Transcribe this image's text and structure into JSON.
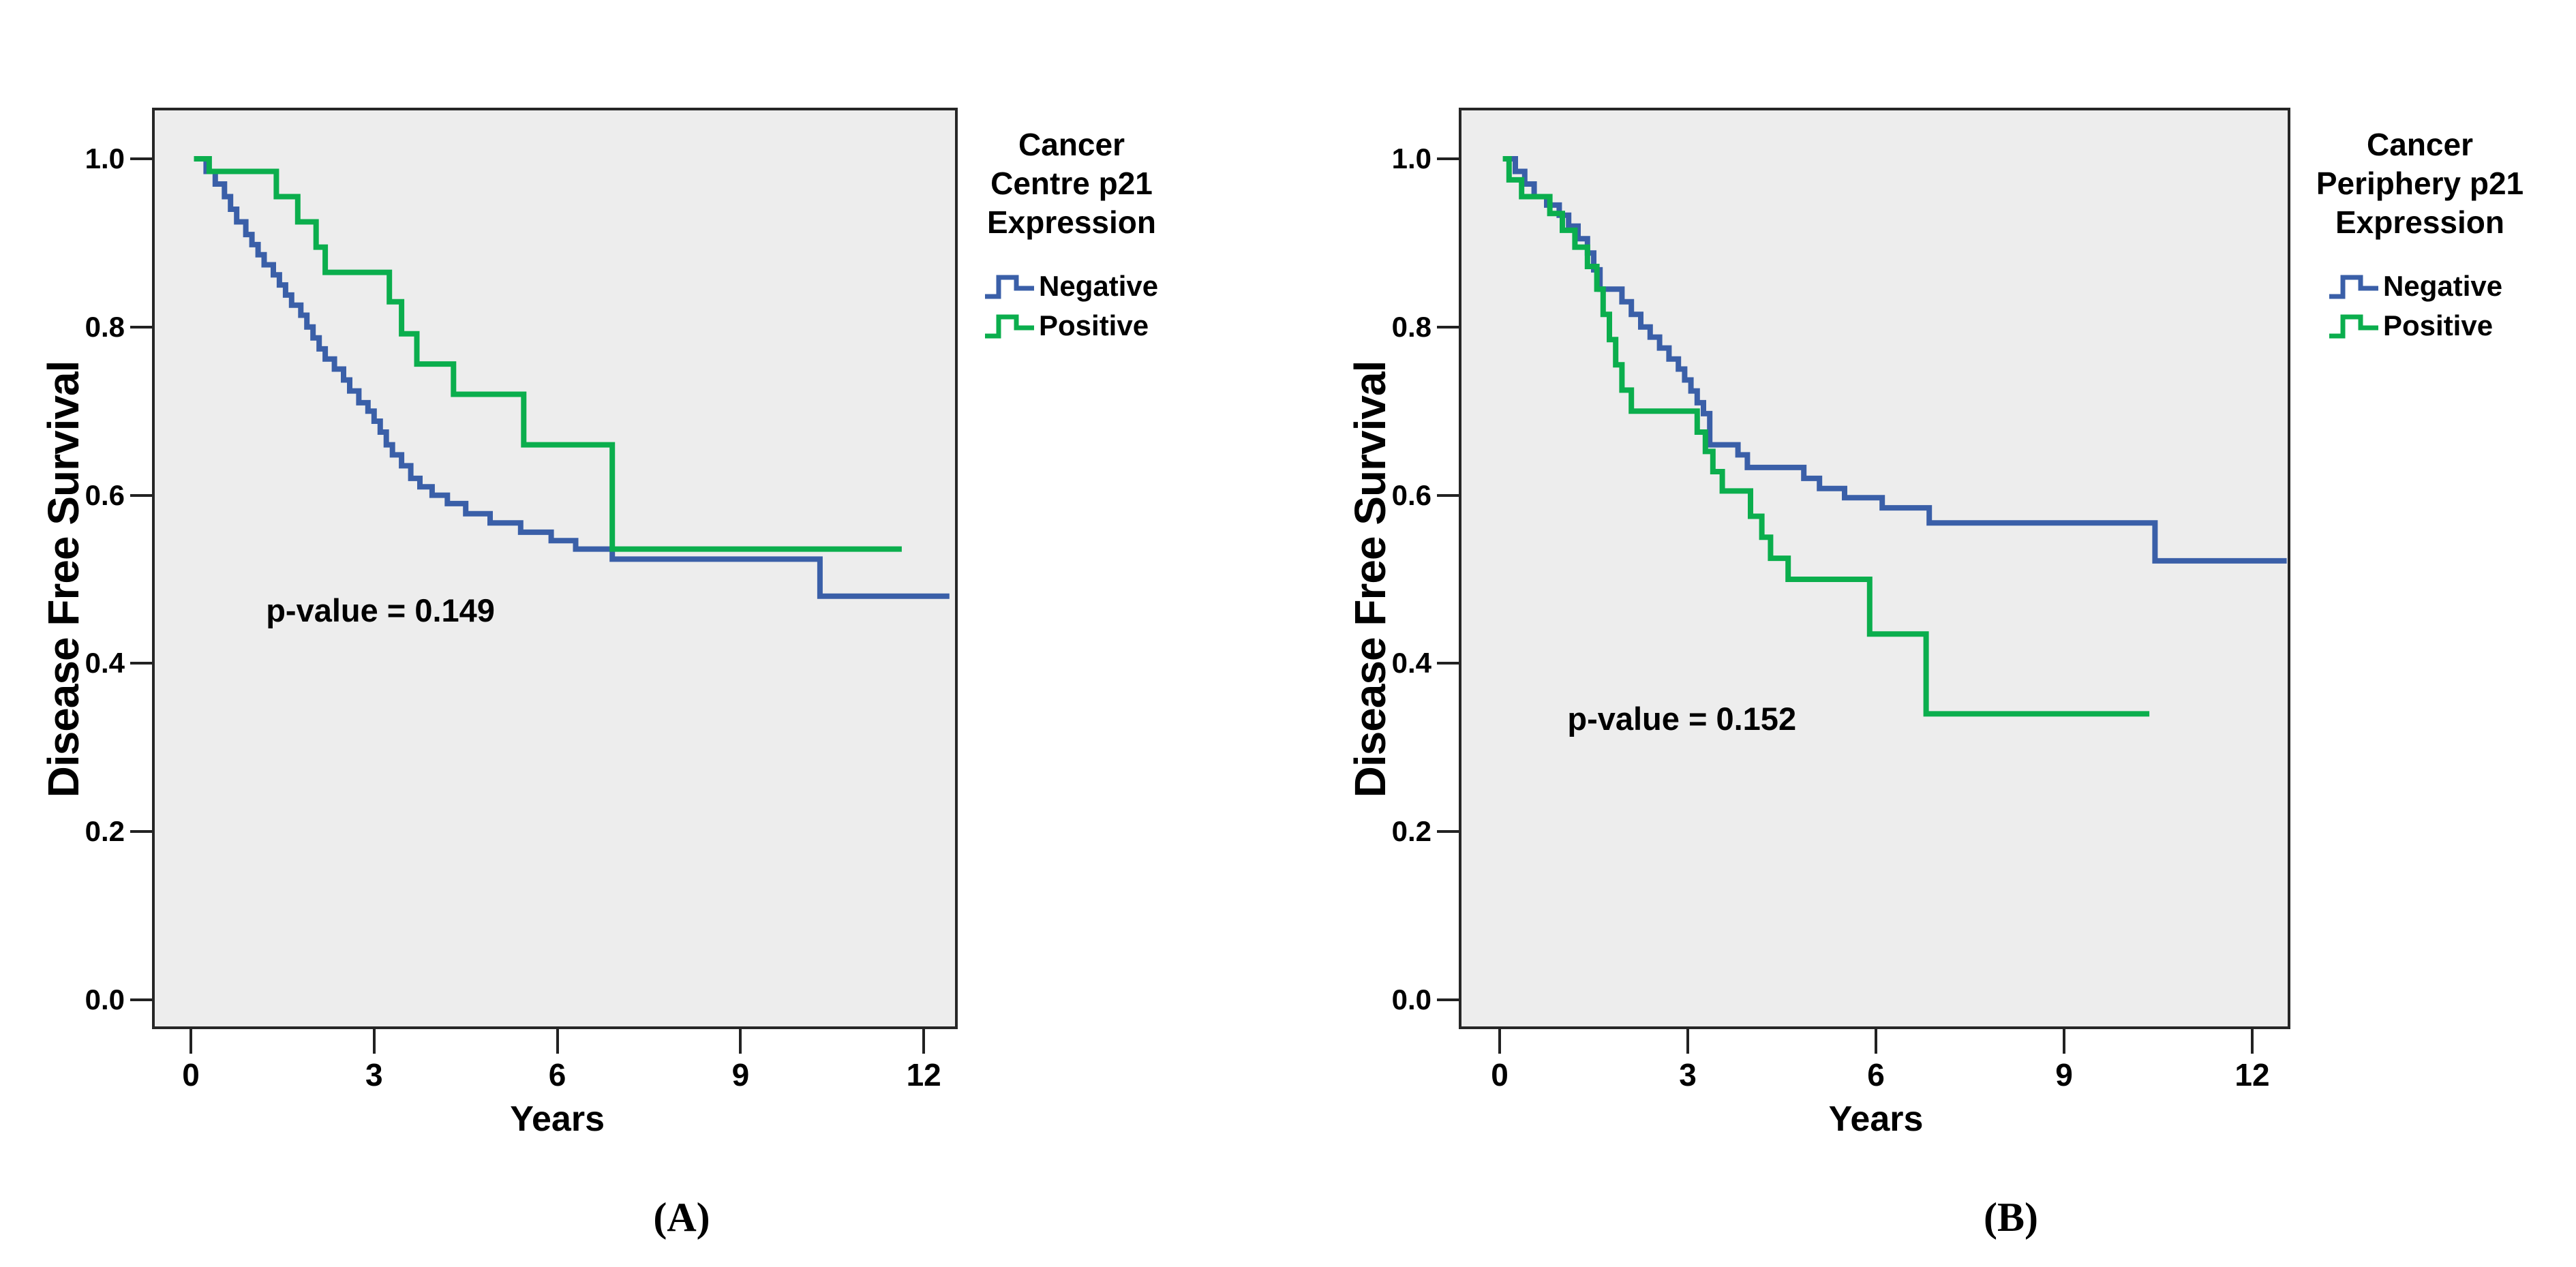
{
  "figure": {
    "type": "kaplan-meier-pair",
    "background": "#ffffff"
  },
  "colors": {
    "negative": "#3a5fa8",
    "positive": "#0bae4d",
    "plot_background": "#ededed",
    "frame": "#262626",
    "tick": "#222222",
    "text": "#000000"
  },
  "chart_data": [
    {
      "type": "line",
      "subtype": "kaplan-meier-step",
      "xlabel": "Years",
      "ylabel": "Disease Free Survival",
      "caption": "(A)",
      "annotation": "p-value = 0.149",
      "annotation_xy": [
        1.23,
        0.463
      ],
      "legend_title_lines": [
        "Cancer",
        "Centre p21",
        "Expression"
      ],
      "legend_position": "right",
      "grid": false,
      "xlim": [
        -0.64,
        12.7
      ],
      "ylim": [
        -0.035,
        1.06
      ],
      "x_ticks": [
        0,
        3,
        6,
        9,
        12
      ],
      "y_ticks": [
        1.0,
        0.8,
        0.6,
        0.4,
        0.2,
        0.0
      ],
      "x_tick_labels": [
        "0",
        "3",
        "6",
        "9",
        "12"
      ],
      "y_tick_labels": [
        "1.0",
        "0.8",
        "0.6",
        "0.4",
        "0.2",
        "0.0"
      ],
      "series": [
        {
          "name": "Negative",
          "color": "#3a5fa8",
          "steps": [
            [
              0.05,
              1.0
            ],
            [
              0.25,
              0.985
            ],
            [
              0.4,
              0.97
            ],
            [
              0.55,
              0.955
            ],
            [
              0.65,
              0.94
            ],
            [
              0.75,
              0.925
            ],
            [
              0.9,
              0.91
            ],
            [
              1.0,
              0.898
            ],
            [
              1.1,
              0.886
            ],
            [
              1.2,
              0.874
            ],
            [
              1.35,
              0.862
            ],
            [
              1.45,
              0.85
            ],
            [
              1.55,
              0.838
            ],
            [
              1.65,
              0.826
            ],
            [
              1.8,
              0.814
            ],
            [
              1.9,
              0.8
            ],
            [
              2.0,
              0.787
            ],
            [
              2.1,
              0.774
            ],
            [
              2.2,
              0.762
            ],
            [
              2.35,
              0.75
            ],
            [
              2.5,
              0.737
            ],
            [
              2.6,
              0.724
            ],
            [
              2.75,
              0.71
            ],
            [
              2.9,
              0.7
            ],
            [
              3.0,
              0.688
            ],
            [
              3.1,
              0.675
            ],
            [
              3.2,
              0.66
            ],
            [
              3.3,
              0.648
            ],
            [
              3.45,
              0.635
            ],
            [
              3.6,
              0.62
            ],
            [
              3.75,
              0.61
            ],
            [
              3.95,
              0.6
            ],
            [
              4.2,
              0.59
            ],
            [
              4.5,
              0.578
            ],
            [
              4.9,
              0.567
            ],
            [
              5.4,
              0.556
            ],
            [
              5.9,
              0.546
            ],
            [
              6.3,
              0.536
            ],
            [
              6.9,
              0.524
            ],
            [
              10.3,
              0.48
            ],
            [
              12.42,
              0.48
            ]
          ]
        },
        {
          "name": "Positive",
          "color": "#0bae4d",
          "steps": [
            [
              0.05,
              1.0
            ],
            [
              0.3,
              0.985
            ],
            [
              1.4,
              0.955
            ],
            [
              1.75,
              0.925
            ],
            [
              2.05,
              0.895
            ],
            [
              2.2,
              0.865
            ],
            [
              3.25,
              0.83
            ],
            [
              3.45,
              0.792
            ],
            [
              3.7,
              0.756
            ],
            [
              4.3,
              0.72
            ],
            [
              5.45,
              0.66
            ],
            [
              6.9,
              0.536
            ],
            [
              11.64,
              0.536
            ]
          ]
        }
      ]
    },
    {
      "type": "line",
      "subtype": "kaplan-meier-step",
      "xlabel": "Years",
      "ylabel": "Disease Free Survival",
      "caption": "(B)",
      "annotation": "p-value = 0.152",
      "annotation_xy": [
        1.08,
        0.334
      ],
      "legend_title_lines": [
        "Cancer",
        "Periphery p21",
        "Expression"
      ],
      "legend_position": "right",
      "grid": false,
      "xlim": [
        -0.64,
        12.7
      ],
      "ylim": [
        -0.035,
        1.06
      ],
      "x_ticks": [
        0,
        3,
        6,
        9,
        12
      ],
      "y_ticks": [
        1.0,
        0.8,
        0.6,
        0.4,
        0.2,
        0.0
      ],
      "x_tick_labels": [
        "0",
        "3",
        "6",
        "9",
        "12"
      ],
      "y_tick_labels": [
        "1.0",
        "0.8",
        "0.6",
        "0.4",
        "0.2",
        "0.0"
      ],
      "series": [
        {
          "name": "Negative",
          "color": "#3a5fa8",
          "steps": [
            [
              0.1,
              1.0
            ],
            [
              0.25,
              0.985
            ],
            [
              0.4,
              0.97
            ],
            [
              0.55,
              0.955
            ],
            [
              0.75,
              0.945
            ],
            [
              0.95,
              0.933
            ],
            [
              1.1,
              0.92
            ],
            [
              1.25,
              0.905
            ],
            [
              1.4,
              0.888
            ],
            [
              1.5,
              0.868
            ],
            [
              1.6,
              0.845
            ],
            [
              1.95,
              0.83
            ],
            [
              2.1,
              0.815
            ],
            [
              2.25,
              0.8
            ],
            [
              2.4,
              0.788
            ],
            [
              2.55,
              0.775
            ],
            [
              2.7,
              0.762
            ],
            [
              2.85,
              0.75
            ],
            [
              2.95,
              0.737
            ],
            [
              3.05,
              0.724
            ],
            [
              3.15,
              0.71
            ],
            [
              3.25,
              0.697
            ],
            [
              3.35,
              0.66
            ],
            [
              3.8,
              0.648
            ],
            [
              3.95,
              0.633
            ],
            [
              4.85,
              0.62
            ],
            [
              5.1,
              0.608
            ],
            [
              5.5,
              0.597
            ],
            [
              6.1,
              0.585
            ],
            [
              6.85,
              0.567
            ],
            [
              10.45,
              0.522
            ],
            [
              12.55,
              0.522
            ]
          ]
        },
        {
          "name": "Positive",
          "color": "#0bae4d",
          "steps": [
            [
              0.05,
              1.0
            ],
            [
              0.15,
              0.975
            ],
            [
              0.35,
              0.955
            ],
            [
              0.8,
              0.935
            ],
            [
              1.0,
              0.915
            ],
            [
              1.2,
              0.895
            ],
            [
              1.4,
              0.872
            ],
            [
              1.55,
              0.845
            ],
            [
              1.65,
              0.815
            ],
            [
              1.75,
              0.785
            ],
            [
              1.85,
              0.755
            ],
            [
              1.95,
              0.725
            ],
            [
              2.1,
              0.7
            ],
            [
              3.15,
              0.675
            ],
            [
              3.28,
              0.652
            ],
            [
              3.4,
              0.628
            ],
            [
              3.55,
              0.605
            ],
            [
              4.0,
              0.575
            ],
            [
              4.18,
              0.55
            ],
            [
              4.32,
              0.525
            ],
            [
              4.6,
              0.5
            ],
            [
              5.9,
              0.435
            ],
            [
              6.8,
              0.34
            ],
            [
              10.36,
              0.34
            ]
          ]
        }
      ]
    }
  ]
}
